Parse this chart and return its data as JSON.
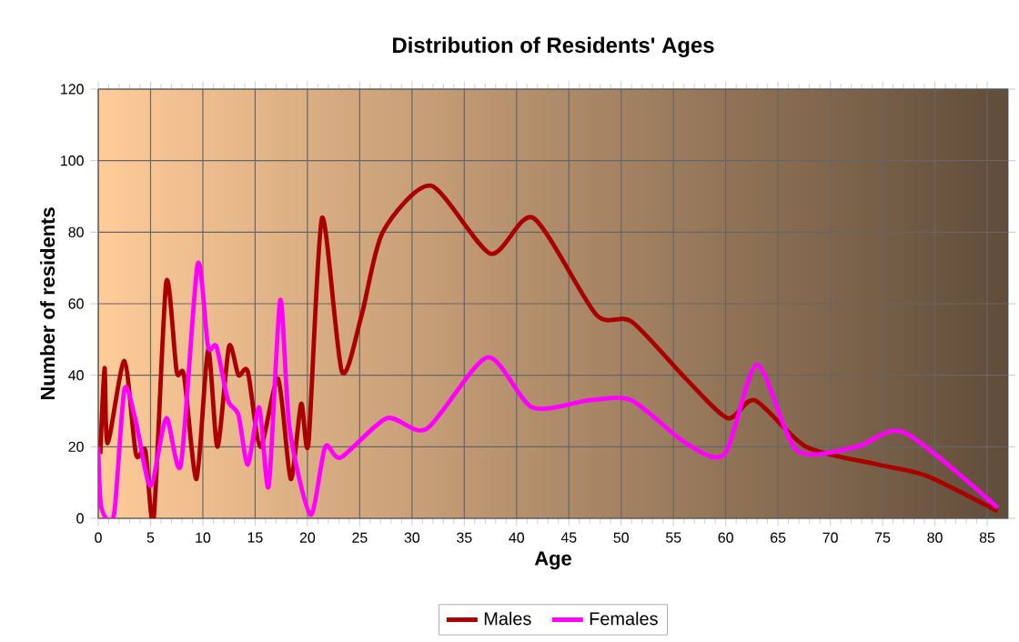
{
  "chart_data": {
    "type": "line",
    "title": "Distribution of Residents' Ages",
    "xlabel": "Age",
    "ylabel": "Number of residents",
    "xlim": [
      0,
      87
    ],
    "xticks": [
      0,
      5,
      10,
      15,
      20,
      25,
      30,
      35,
      40,
      45,
      50,
      55,
      60,
      65,
      70,
      75,
      80,
      85
    ],
    "ylim": [
      0,
      120
    ],
    "yticks": [
      0,
      20,
      40,
      60,
      80,
      100,
      120
    ],
    "grid": true,
    "legend": "bottom",
    "series": [
      {
        "name": "Males",
        "color": "#aa0000",
        "x": [
          0.2,
          0.6,
          0.9,
          2.5,
          3.6,
          4.5,
          5.3,
          6.5,
          7.5,
          8.2,
          9.4,
          10.5,
          11.4,
          12.5,
          13.4,
          14.3,
          15.5,
          17.2,
          18.4,
          19.4,
          20.1,
          21.4,
          23.3,
          25.2,
          27.2,
          31.8,
          37.5,
          41.6,
          47.6,
          51,
          56.2,
          60.2,
          62.8,
          67.7,
          74.6,
          79.1,
          86
        ],
        "values": [
          18,
          42,
          21,
          44,
          18,
          19,
          0,
          66,
          41,
          40,
          11,
          47,
          20,
          48,
          40,
          41,
          20,
          39,
          11,
          32,
          21,
          84,
          41,
          57,
          80,
          93,
          74,
          84,
          57,
          55,
          39,
          28,
          33,
          20,
          15,
          12,
          2
        ]
      },
      {
        "name": "Females",
        "color": "#ff00ff",
        "x": [
          0,
          0.3,
          1.5,
          2.5,
          3.6,
          5,
          6.5,
          7.9,
          9.5,
          10.5,
          11.3,
          12.4,
          13.4,
          14.3,
          15.4,
          16.3,
          17.4,
          18.3,
          20.3,
          21.7,
          23.2,
          27.6,
          31.4,
          37.2,
          41.5,
          47,
          51,
          56.2,
          59.9,
          63,
          66.8,
          72.5,
          77.1,
          86
        ],
        "values": [
          20,
          3,
          1,
          36,
          27,
          9,
          28,
          15,
          71,
          48,
          48,
          33,
          29,
          15,
          31,
          9,
          61,
          25,
          1,
          20,
          17,
          28,
          25,
          45,
          31,
          33,
          33,
          21,
          18,
          43,
          19,
          20,
          24,
          3
        ]
      }
    ]
  }
}
